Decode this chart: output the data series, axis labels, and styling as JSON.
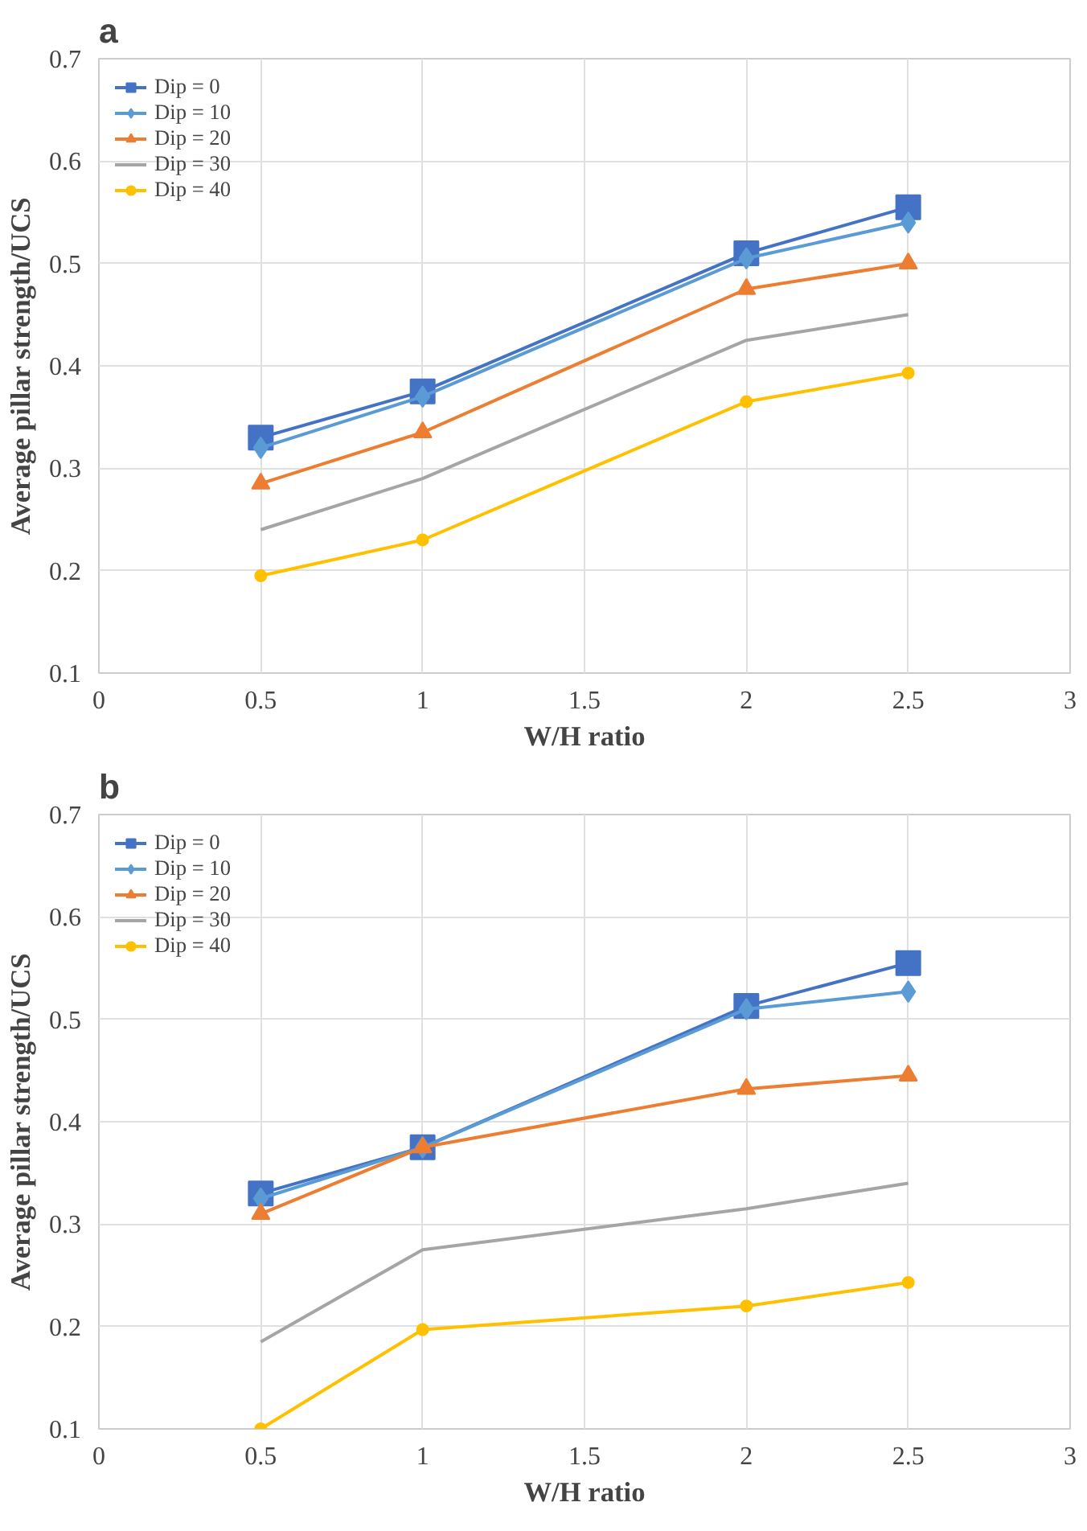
{
  "chart_data": [
    {
      "type": "line",
      "title": "a",
      "xlabel": "W/H ratio",
      "ylabel": "Average pillar strength/UCS",
      "x": [
        0.5,
        1,
        2,
        2.5
      ],
      "xlim": [
        0,
        3
      ],
      "xticks": [
        0,
        0.5,
        1,
        1.5,
        2,
        2.5,
        3
      ],
      "ylim": [
        0.1,
        0.7
      ],
      "yticks": [
        0.1,
        0.2,
        0.3,
        0.4,
        0.5,
        0.6,
        0.7
      ],
      "grid": true,
      "legend": "top left",
      "series": [
        {
          "name": "Dip = 0",
          "color": "#4472c4",
          "marker": "square",
          "values": [
            0.33,
            0.375,
            0.51,
            0.555
          ]
        },
        {
          "name": "Dip = 10",
          "color": "#5b9bd5",
          "marker": "diamond",
          "values": [
            0.32,
            0.37,
            0.505,
            0.54
          ]
        },
        {
          "name": "Dip = 20",
          "color": "#ed7d31",
          "marker": "triangle",
          "values": [
            0.285,
            0.335,
            0.475,
            0.5
          ]
        },
        {
          "name": "Dip = 30",
          "color": "#a5a5a5",
          "marker": "none",
          "values": [
            0.24,
            0.29,
            0.425,
            0.45
          ]
        },
        {
          "name": "Dip = 40",
          "color": "#ffc000",
          "marker": "circle",
          "values": [
            0.195,
            0.23,
            0.365,
            0.393
          ]
        }
      ]
    },
    {
      "type": "line",
      "title": "b",
      "xlabel": "W/H ratio",
      "ylabel": "Average pillar strength/UCS",
      "x": [
        0.5,
        1,
        2,
        2.5
      ],
      "xlim": [
        0,
        3
      ],
      "xticks": [
        0,
        0.5,
        1,
        1.5,
        2,
        2.5,
        3
      ],
      "ylim": [
        0.1,
        0.7
      ],
      "yticks": [
        0.1,
        0.2,
        0.3,
        0.4,
        0.5,
        0.6,
        0.7
      ],
      "grid": true,
      "legend": "top left",
      "series": [
        {
          "name": "Dip = 0",
          "color": "#4472c4",
          "marker": "square",
          "values": [
            0.33,
            0.375,
            0.513,
            0.555
          ]
        },
        {
          "name": "Dip = 10",
          "color": "#5b9bd5",
          "marker": "diamond",
          "values": [
            0.325,
            0.375,
            0.51,
            0.527
          ]
        },
        {
          "name": "Dip = 20",
          "color": "#ed7d31",
          "marker": "triangle",
          "values": [
            0.31,
            0.375,
            0.432,
            0.445
          ]
        },
        {
          "name": "Dip = 30",
          "color": "#a5a5a5",
          "marker": "none",
          "values": [
            0.185,
            0.275,
            0.315,
            0.34
          ]
        },
        {
          "name": "Dip = 40",
          "color": "#ffc000",
          "marker": "circle",
          "values": [
            0.1,
            0.197,
            0.22,
            0.243
          ]
        }
      ]
    }
  ]
}
